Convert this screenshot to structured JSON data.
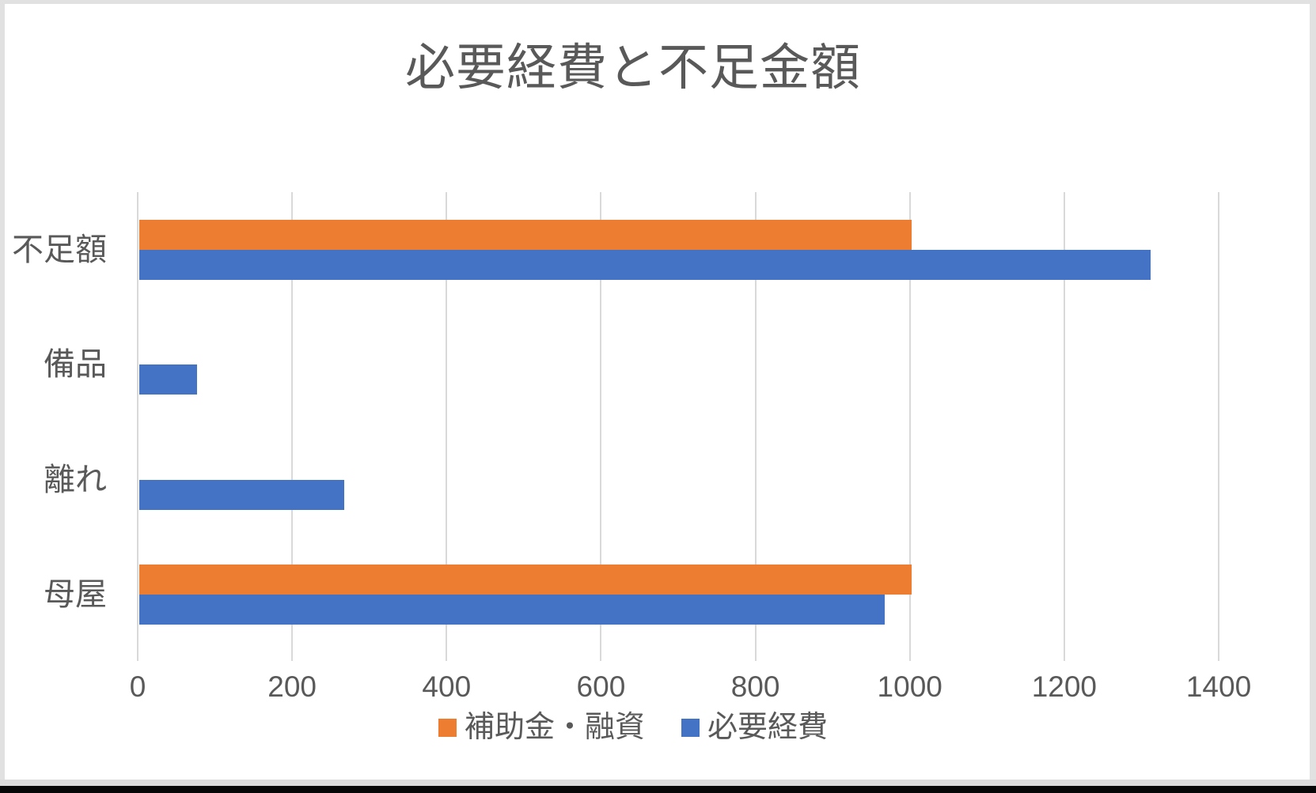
{
  "window": {
    "background": "#FFFFFF",
    "frame_color": "#E1E1E1",
    "bottom_gray_strip_color": "#DBDBDB",
    "bottom_black_bar_color": "#060606"
  },
  "chart_data": {
    "type": "bar",
    "orientation": "horizontal",
    "title": "必要経費と不足金額",
    "title_color": "#595959",
    "categories": [
      "不足額",
      "備品",
      "離れ",
      "母屋"
    ],
    "series": [
      {
        "name": "補助金・融資",
        "color": "#ED7D31",
        "values": [
          1000,
          0,
          0,
          1000
        ]
      },
      {
        "name": "必要経費",
        "color": "#4472C4",
        "values": [
          1310,
          75,
          265,
          965
        ]
      }
    ],
    "xlabel": "",
    "ylabel": "",
    "xlim": [
      0,
      1400
    ],
    "xticks": [
      0,
      200,
      400,
      600,
      800,
      1000,
      1200,
      1400
    ],
    "grid": "vertical-only",
    "gridline_color": "#D9D9D9",
    "axis_label_color": "#595959",
    "legend_position": "bottom"
  }
}
